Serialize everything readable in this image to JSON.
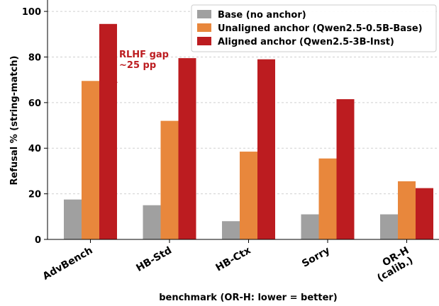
{
  "chart_data": {
    "type": "bar",
    "categories": [
      "AdvBench",
      "HB-Std",
      "HB-Ctx",
      "Sorry",
      "OR-H\n(calib.)"
    ],
    "series": [
      {
        "name": "Base (no anchor)",
        "color": "#a0a0a0",
        "values": [
          17.5,
          15,
          8,
          11,
          11
        ]
      },
      {
        "name": "Unaligned anchor (Qwen2.5-0.5B-Base)",
        "color": "#e8873c",
        "values": [
          69.5,
          52,
          38.5,
          35.5,
          25.5
        ]
      },
      {
        "name": "Aligned anchor (Qwen2.5-3B-Inst)",
        "color": "#bc1c20",
        "values": [
          94.5,
          79.5,
          79,
          61.5,
          22.5
        ]
      }
    ],
    "xlabel": "benchmark (OR-H: lower = better)",
    "ylabel": "Refusal % (string-match)",
    "ylim": [
      0,
      105
    ],
    "yticks": [
      0,
      20,
      40,
      60,
      80,
      100
    ],
    "grid": true,
    "legend_position": "top-right",
    "annotation": {
      "lines": [
        "RLHF gap",
        "~25 pp"
      ],
      "color": "#bc1c20"
    }
  }
}
